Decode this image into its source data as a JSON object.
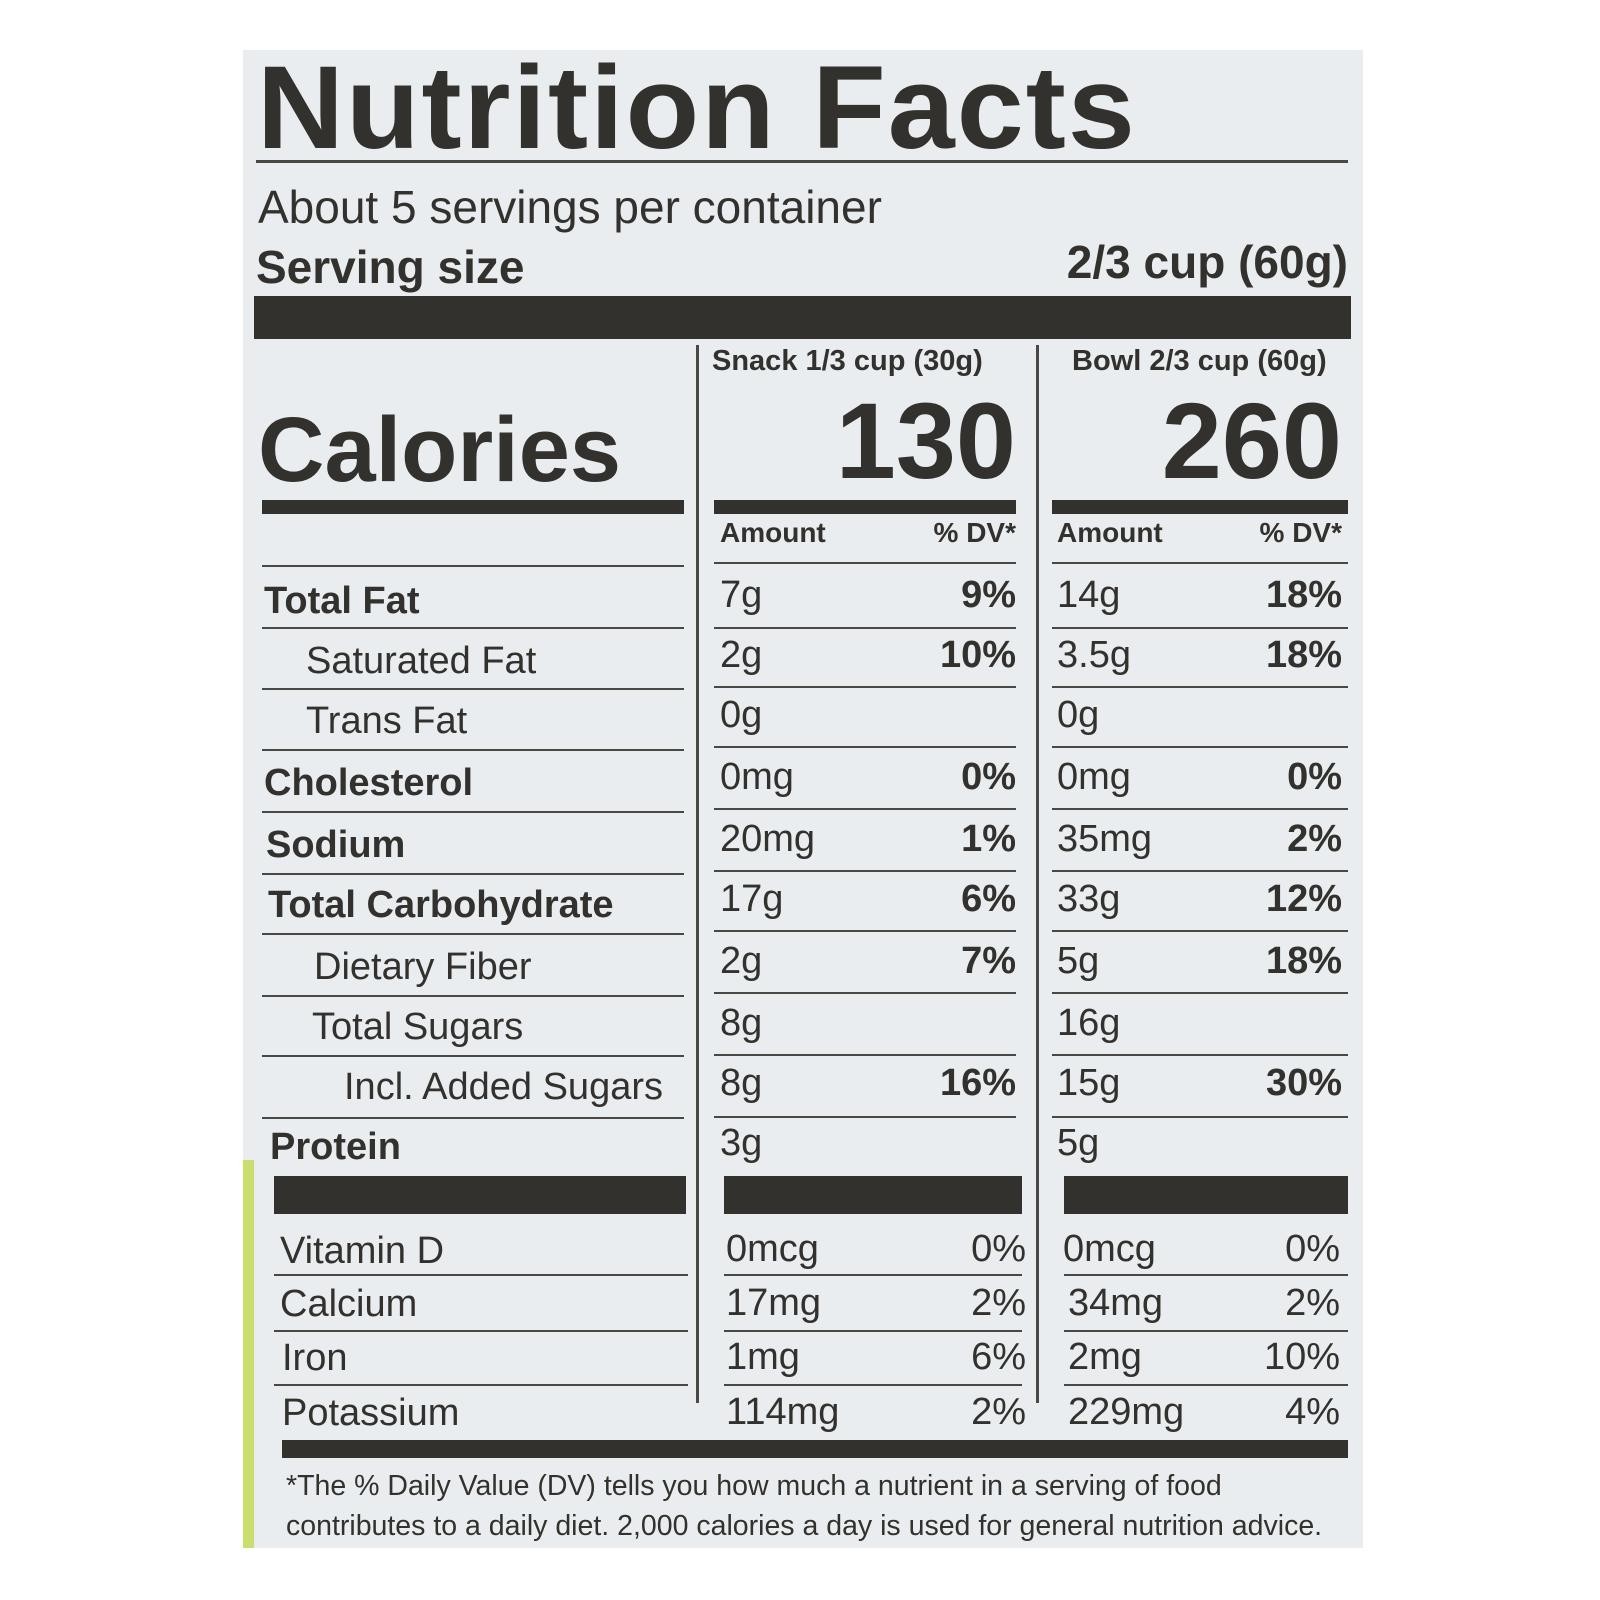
{
  "title": "Nutrition Facts",
  "servings_per_container": "About 5 servings per container",
  "serving_size_label": "Serving size",
  "serving_size_value": "2/3 cup (60g)",
  "columns": {
    "snack_header": "Snack 1/3 cup (30g)",
    "bowl_header": "Bowl 2/3 cup (60g)",
    "amount_label": "Amount",
    "dv_label": "% DV*"
  },
  "calories": {
    "label": "Calories",
    "snack": "130",
    "bowl": "260"
  },
  "nutrients": [
    {
      "name": "Total Fat",
      "snack_amount": "7g",
      "snack_dv": "9%",
      "bowl_amount": "14g",
      "bowl_dv": "18%"
    },
    {
      "name": "Saturated Fat",
      "snack_amount": "2g",
      "snack_dv": "10%",
      "bowl_amount": "3.5g",
      "bowl_dv": "18%"
    },
    {
      "name": "Trans Fat",
      "snack_amount": "0g",
      "snack_dv": "",
      "bowl_amount": "0g",
      "bowl_dv": ""
    },
    {
      "name": "Cholesterol",
      "snack_amount": "0mg",
      "snack_dv": "0%",
      "bowl_amount": "0mg",
      "bowl_dv": "0%"
    },
    {
      "name": "Sodium",
      "snack_amount": "20mg",
      "snack_dv": "1%",
      "bowl_amount": "35mg",
      "bowl_dv": "2%"
    },
    {
      "name": "Total Carbohydrate",
      "snack_amount": "17g",
      "snack_dv": "6%",
      "bowl_amount": "33g",
      "bowl_dv": "12%"
    },
    {
      "name": "Dietary Fiber",
      "snack_amount": "2g",
      "snack_dv": "7%",
      "bowl_amount": "5g",
      "bowl_dv": "18%"
    },
    {
      "name": "Total Sugars",
      "snack_amount": "8g",
      "snack_dv": "",
      "bowl_amount": "16g",
      "bowl_dv": ""
    },
    {
      "name": "Incl. Added Sugars",
      "snack_amount": "8g",
      "snack_dv": "16%",
      "bowl_amount": "15g",
      "bowl_dv": "30%"
    },
    {
      "name": "Protein",
      "snack_amount": "3g",
      "snack_dv": "",
      "bowl_amount": "5g",
      "bowl_dv": ""
    }
  ],
  "vitamins": [
    {
      "name": "Vitamin D",
      "snack_amount": "0mcg",
      "snack_dv": "0%",
      "bowl_amount": "0mcg",
      "bowl_dv": "0%"
    },
    {
      "name": "Calcium",
      "snack_amount": "17mg",
      "snack_dv": "2%",
      "bowl_amount": "34mg",
      "bowl_dv": "2%"
    },
    {
      "name": "Iron",
      "snack_amount": "1mg",
      "snack_dv": "6%",
      "bowl_amount": "2mg",
      "bowl_dv": "10%"
    },
    {
      "name": "Potassium",
      "snack_amount": "114mg",
      "snack_dv": "2%",
      "bowl_amount": "229mg",
      "bowl_dv": "4%"
    }
  ],
  "footnote": {
    "line1": "*The % Daily Value (DV) tells you how much a nutrient in a serving of food",
    "line2": "contributes to a daily diet. 2,000 calories a day is used for general nutrition advice."
  }
}
